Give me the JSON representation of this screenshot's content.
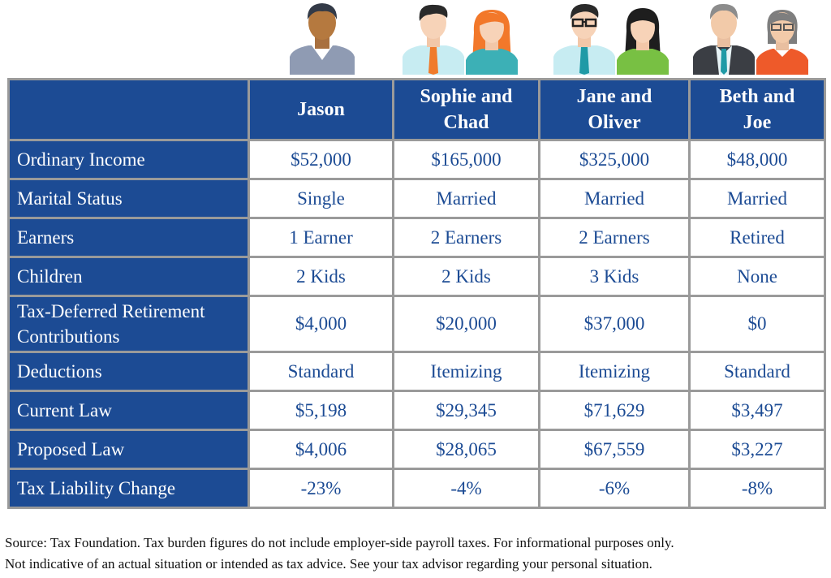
{
  "people": [
    {
      "name": "Jason",
      "avatars": [
        "man-icon"
      ]
    },
    {
      "name": "Sophie and Chad",
      "avatars": [
        "man-icon",
        "woman-icon"
      ]
    },
    {
      "name": "Jane and Oliver",
      "avatars": [
        "man-glasses-icon",
        "woman-icon"
      ]
    },
    {
      "name": "Beth and Joe",
      "avatars": [
        "older-man-icon",
        "older-woman-icon"
      ]
    }
  ],
  "table": {
    "header": [
      "",
      "Jason",
      "Sophie and Chad",
      "Jane and Oliver",
      "Beth and Joe"
    ],
    "rows": [
      {
        "label": "Ordinary Income",
        "values": [
          "$52,000",
          "$165,000",
          "$325,000",
          "$48,000"
        ]
      },
      {
        "label": "Marital Status",
        "values": [
          "Single",
          "Married",
          "Married",
          "Married"
        ]
      },
      {
        "label": "Earners",
        "values": [
          "1 Earner",
          "2 Earners",
          "2 Earners",
          "Retired"
        ]
      },
      {
        "label": "Children",
        "values": [
          "2 Kids",
          "2 Kids",
          "3 Kids",
          "None"
        ]
      },
      {
        "label": "Tax-Deferred Retirement Contributions",
        "values": [
          "$4,000",
          "$20,000",
          "$37,000",
          "$0"
        ]
      },
      {
        "label": "Deductions",
        "values": [
          "Standard",
          "Itemizing",
          "Itemizing",
          "Standard"
        ]
      },
      {
        "label": "Current Law",
        "values": [
          "$5,198",
          "$29,345",
          "$71,629",
          "$3,497"
        ]
      },
      {
        "label": "Proposed Law",
        "values": [
          "$4,006",
          "$28,065",
          "$67,559",
          "$3,227"
        ]
      },
      {
        "label": "Tax Liability Change",
        "values": [
          "-23%",
          "-4%",
          "-6%",
          "-8%"
        ]
      }
    ]
  },
  "source_line_1": "Source: Tax Foundation. Tax burden figures do not include employer-side payroll taxes. For informational purposes only.",
  "source_line_2": "Not indicative of an actual situation or intended as tax advice. See your tax advisor regarding your personal situation.",
  "colors": {
    "header_bg": "#1c4b94",
    "value_text": "#1c4b94",
    "border": "#9a9a9a"
  }
}
